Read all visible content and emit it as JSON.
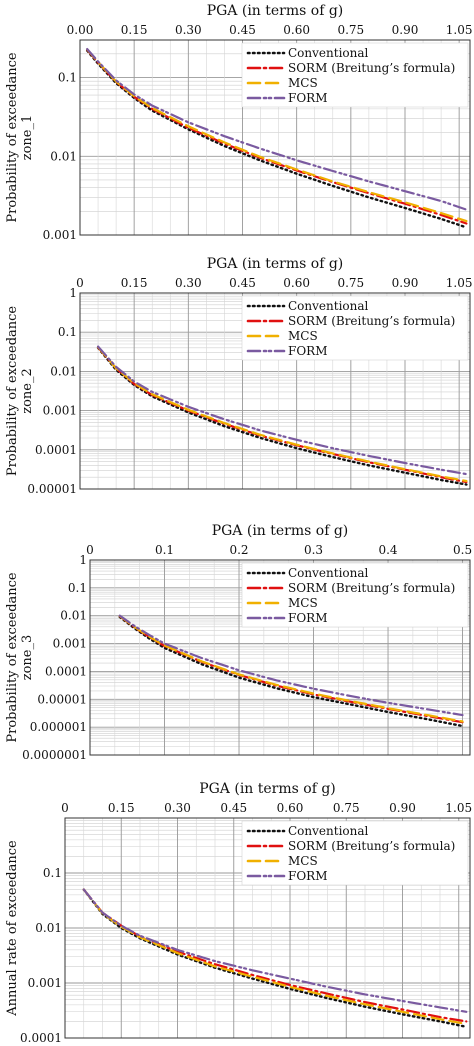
{
  "colors": {
    "conventional": "#111111",
    "sorm": "#e01010",
    "mcs": "#f0b000",
    "form": "#7a5aa0"
  },
  "legend_labels": [
    "Conventional",
    "SORM (Breitung’s formula)",
    "MCS",
    "FORM"
  ],
  "chart_data": [
    {
      "type": "line",
      "title": "PGA (in terms of g)",
      "ylabel": [
        "Probability of exceedance",
        "zone_1"
      ],
      "yscale": "log",
      "xlim": [
        0.0,
        1.08
      ],
      "ylim": [
        0.001,
        0.3
      ],
      "x_ticks": [
        "0.00",
        "0.15",
        "0.30",
        "0.45",
        "0.60",
        "0.75",
        "0.90",
        "1.05"
      ],
      "x_tick_values": [
        0.0,
        0.15,
        0.3,
        0.45,
        0.6,
        0.75,
        0.9,
        1.05
      ],
      "y_ticks": [
        "0.1",
        "0.01",
        "0.001"
      ],
      "y_tick_values": [
        0.1,
        0.01,
        0.001
      ],
      "legend_position": "top-right",
      "grid": true,
      "x": [
        0.02,
        0.05,
        0.1,
        0.15,
        0.2,
        0.3,
        0.4,
        0.5,
        0.6,
        0.7,
        0.8,
        0.9,
        1.0,
        1.07
      ],
      "series": [
        {
          "name": "Conventional",
          "style": "dotted",
          "values": [
            0.22,
            0.15,
            0.085,
            0.055,
            0.038,
            0.022,
            0.0135,
            0.0088,
            0.006,
            0.0042,
            0.003,
            0.0022,
            0.0016,
            0.00125
          ]
        },
        {
          "name": "SORM (Breitung’s formula)",
          "style": "dashdot",
          "values": [
            0.225,
            0.155,
            0.088,
            0.057,
            0.04,
            0.023,
            0.0145,
            0.0095,
            0.0066,
            0.0047,
            0.0034,
            0.0025,
            0.0018,
            0.0014
          ]
        },
        {
          "name": "MCS",
          "style": "dashed",
          "values": [
            0.228,
            0.157,
            0.089,
            0.058,
            0.041,
            0.024,
            0.015,
            0.0098,
            0.0068,
            0.0048,
            0.0035,
            0.0026,
            0.0019,
            0.0015
          ]
        },
        {
          "name": "FORM",
          "style": "dashdotdot",
          "values": [
            0.23,
            0.16,
            0.092,
            0.061,
            0.044,
            0.027,
            0.018,
            0.0125,
            0.0089,
            0.0065,
            0.0048,
            0.0036,
            0.0027,
            0.0021
          ]
        }
      ]
    },
    {
      "type": "line",
      "title": "PGA (in terms of g)",
      "ylabel": [
        "Probability of exceedance",
        "zone_2"
      ],
      "yscale": "log",
      "xlim": [
        0.0,
        1.08
      ],
      "ylim": [
        1e-05,
        1
      ],
      "x_ticks": [
        "0",
        "0.15",
        "0.30",
        "0.45",
        "0.60",
        "0.75",
        "0.90",
        "1.05"
      ],
      "x_tick_values": [
        0.0,
        0.15,
        0.3,
        0.45,
        0.6,
        0.75,
        0.9,
        1.05
      ],
      "y_ticks": [
        "1",
        "0.1",
        "0.01",
        "0.001",
        "0.0001",
        "0.00001"
      ],
      "y_tick_values": [
        1,
        0.1,
        0.01,
        0.001,
        0.0001,
        1e-05
      ],
      "legend_position": "top-right",
      "grid": true,
      "x": [
        0.05,
        0.1,
        0.15,
        0.2,
        0.3,
        0.4,
        0.5,
        0.6,
        0.7,
        0.8,
        0.9,
        1.0,
        1.07
      ],
      "series": [
        {
          "name": "Conventional",
          "style": "dotted",
          "values": [
            0.04,
            0.011,
            0.0045,
            0.0023,
            0.0009,
            0.0004,
            0.0002,
            0.00011,
            6.5e-05,
            4e-05,
            2.6e-05,
            1.7e-05,
            1.3e-05
          ]
        },
        {
          "name": "SORM (Breitung’s formula)",
          "style": "dashdot",
          "values": [
            0.041,
            0.012,
            0.0048,
            0.0025,
            0.001,
            0.00046,
            0.00023,
            0.00013,
            7.8e-05,
            4.8e-05,
            3.1e-05,
            2e-05,
            1.5e-05
          ]
        },
        {
          "name": "MCS",
          "style": "dashed",
          "values": [
            0.042,
            0.012,
            0.005,
            0.0026,
            0.00105,
            0.00048,
            0.00024,
            0.000135,
            8.1e-05,
            5e-05,
            3.2e-05,
            2.1e-05,
            1.6e-05
          ]
        },
        {
          "name": "FORM",
          "style": "dashdotdot",
          "values": [
            0.043,
            0.013,
            0.0055,
            0.003,
            0.00125,
            0.0006,
            0.00031,
            0.00018,
            0.00011,
            7e-05,
            4.6e-05,
            3.1e-05,
            2.4e-05
          ]
        }
      ]
    },
    {
      "type": "line",
      "title": "PGA (in terms of g)",
      "ylabel": [
        "Probability of exceedance",
        "zone_3"
      ],
      "yscale": "log",
      "xlim": [
        0.0,
        0.51
      ],
      "ylim": [
        1e-07,
        1
      ],
      "x_ticks": [
        "0",
        "0.1",
        "0.2",
        "0.3",
        "0.4",
        "0.5"
      ],
      "x_tick_values": [
        0.0,
        0.1,
        0.2,
        0.3,
        0.4,
        0.5
      ],
      "y_ticks": [
        "1",
        "0.1",
        "0.01",
        "0.001",
        "0.0001",
        "0.00001",
        "0.000001",
        "0.0000001"
      ],
      "y_tick_values": [
        1,
        0.1,
        0.01,
        0.001,
        0.0001,
        1e-05,
        1e-06,
        1e-07
      ],
      "legend_position": "top-right",
      "grid": true,
      "x": [
        0.04,
        0.06,
        0.08,
        0.1,
        0.15,
        0.2,
        0.25,
        0.3,
        0.35,
        0.4,
        0.45,
        0.5
      ],
      "series": [
        {
          "name": "Conventional",
          "style": "dotted",
          "values": [
            0.009,
            0.0035,
            0.0015,
            0.0007,
            0.00018,
            6e-05,
            2.5e-05,
            1.2e-05,
            6.5e-06,
            3.5e-06,
            2e-06,
            1.1e-06
          ]
        },
        {
          "name": "SORM (Breitung’s formula)",
          "style": "dashdot",
          "values": [
            0.0095,
            0.0038,
            0.0017,
            0.00082,
            0.00022,
            7.5e-05,
            3.1e-05,
            1.5e-05,
            8.1e-06,
            4.5e-06,
            2.6e-06,
            1.5e-06
          ]
        },
        {
          "name": "MCS",
          "style": "dashed",
          "values": [
            0.0097,
            0.0039,
            0.00175,
            0.00085,
            0.00023,
            7.8e-05,
            3.3e-05,
            1.6e-05,
            8.6e-06,
            4.8e-06,
            2.8e-06,
            1.6e-06
          ]
        },
        {
          "name": "FORM",
          "style": "dashdotdot",
          "values": [
            0.01,
            0.0042,
            0.002,
            0.001,
            0.0003,
            0.00011,
            4.8e-05,
            2.4e-05,
            1.3e-05,
            7.5e-06,
            4.5e-06,
            2.7e-06
          ]
        }
      ]
    },
    {
      "type": "line",
      "title": "PGA (in terms of g)",
      "ylabel": [
        "Annual rate of exceedance"
      ],
      "yscale": "log",
      "xlim": [
        0.0,
        1.08
      ],
      "ylim": [
        0.0001,
        1
      ],
      "x_ticks": [
        "0",
        "0.15",
        "0.30",
        "0.45",
        "0.60",
        "0.75",
        "0.90",
        "1.05"
      ],
      "x_tick_values": [
        0.0,
        0.15,
        0.3,
        0.45,
        0.6,
        0.75,
        0.9,
        1.05
      ],
      "y_ticks": [
        "0.1",
        "0.01",
        "0.001",
        "0.0001"
      ],
      "y_tick_values": [
        0.1,
        0.01,
        0.001,
        0.0001
      ],
      "legend_position": "top-right",
      "grid": true,
      "x": [
        0.05,
        0.1,
        0.15,
        0.2,
        0.3,
        0.4,
        0.5,
        0.6,
        0.7,
        0.8,
        0.9,
        1.0,
        1.07
      ],
      "series": [
        {
          "name": "Conventional",
          "style": "dotted",
          "values": [
            0.05,
            0.018,
            0.01,
            0.0065,
            0.0033,
            0.0019,
            0.0012,
            0.00078,
            0.00053,
            0.00037,
            0.00027,
            0.0002,
            0.00016
          ]
        },
        {
          "name": "SORM (Breitung’s formula)",
          "style": "dashdot",
          "values": [
            0.05,
            0.019,
            0.011,
            0.007,
            0.0037,
            0.0022,
            0.0014,
            0.00092,
            0.00064,
            0.00045,
            0.00033,
            0.00024,
            0.0002
          ]
        },
        {
          "name": "MCS",
          "style": "dashed",
          "values": [
            0.05,
            0.0185,
            0.0105,
            0.0068,
            0.0035,
            0.002,
            0.0013,
            0.00085,
            0.00058,
            0.00041,
            0.0003,
            0.00022,
            0.00018
          ]
        },
        {
          "name": "FORM",
          "style": "dashdotdot",
          "values": [
            0.05,
            0.019,
            0.011,
            0.0072,
            0.004,
            0.0025,
            0.0017,
            0.0012,
            0.00085,
            0.00062,
            0.00047,
            0.00036,
            0.0003
          ]
        }
      ]
    }
  ]
}
